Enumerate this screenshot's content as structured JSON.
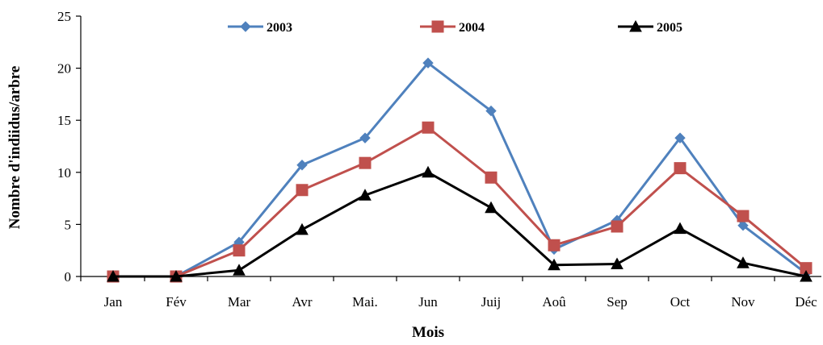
{
  "chart_data": {
    "type": "line",
    "title": "",
    "xlabel": "Mois",
    "ylabel": "Nombre d'indiidus/arbre",
    "categories": [
      "Jan",
      "Fév",
      "Mar",
      "Avr",
      "Mai.",
      "Jun",
      "Juij",
      "Aoû",
      "Sep",
      "Oct",
      "Nov",
      "Déc"
    ],
    "ylim": [
      0,
      25
    ],
    "yticks": [
      0,
      5,
      10,
      15,
      20,
      25
    ],
    "grid": false,
    "legend_position": "top",
    "series": [
      {
        "name": "2003",
        "color": "#4f81bd",
        "marker": "diamond",
        "values": [
          0,
          0,
          3.3,
          10.7,
          13.3,
          20.5,
          15.9,
          2.6,
          5.4,
          13.3,
          4.9,
          0.3
        ]
      },
      {
        "name": "2004",
        "color": "#c0504d",
        "marker": "square",
        "values": [
          0,
          0,
          2.5,
          8.3,
          10.9,
          14.3,
          9.5,
          3.0,
          4.8,
          10.4,
          5.8,
          0.8
        ]
      },
      {
        "name": "2005",
        "color": "#000000",
        "marker": "triangle",
        "values": [
          0,
          0,
          0.6,
          4.5,
          7.8,
          10.0,
          6.6,
          1.1,
          1.2,
          4.6,
          1.3,
          0.0
        ]
      }
    ]
  }
}
